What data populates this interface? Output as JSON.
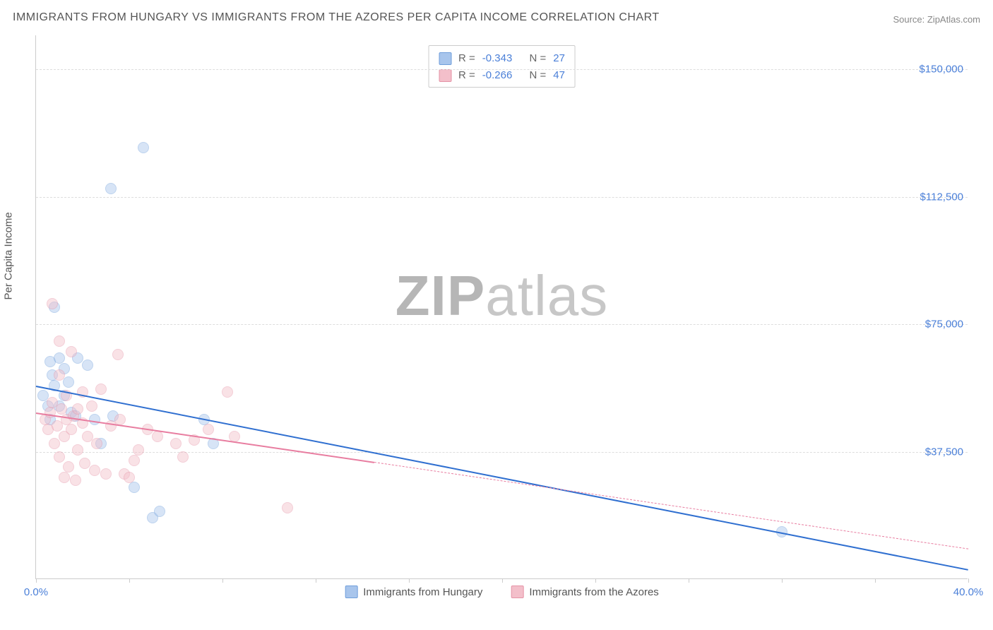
{
  "title": "IMMIGRANTS FROM HUNGARY VS IMMIGRANTS FROM THE AZORES PER CAPITA INCOME CORRELATION CHART",
  "source_label": "Source: ZipAtlas.com",
  "yaxis_title": "Per Capita Income",
  "watermark_bold": "ZIP",
  "watermark_light": "atlas",
  "chart": {
    "type": "scatter",
    "xlim": [
      0,
      40
    ],
    "ylim": [
      0,
      160000
    ],
    "background_color": "#ffffff",
    "grid_color": "#dddddd",
    "axis_color": "#cccccc",
    "gridlines_y": [
      37500,
      75000,
      112500,
      150000
    ],
    "ytick_labels": {
      "37500": "$37,500",
      "75000": "$75,000",
      "112500": "$112,500",
      "150000": "$150,000"
    },
    "xticks": [
      0,
      4,
      8,
      12,
      16,
      20,
      24,
      28,
      32,
      36,
      40
    ],
    "xtick_labels": {
      "0": "0.0%",
      "40": "40.0%"
    },
    "xtick_label_color": "#4a7fd8",
    "ytick_label_color": "#4a7fd8",
    "axis_title_color": "#555555",
    "marker_radius": 8,
    "marker_opacity": 0.45,
    "series": [
      {
        "name": "Immigrants from Hungary",
        "fill_color": "#a8c5ec",
        "stroke_color": "#6f9edb",
        "line_color": "#2f6fd0",
        "line_width": 2.5,
        "r_value": "-0.343",
        "n_value": "27",
        "trend": {
          "x1": 0,
          "y1": 57000,
          "x2": 40,
          "y2": 3000,
          "dash_from_x": null
        },
        "points": [
          [
            0.3,
            54000
          ],
          [
            0.5,
            51000
          ],
          [
            0.6,
            64000
          ],
          [
            0.6,
            47000
          ],
          [
            0.8,
            57000
          ],
          [
            0.8,
            80000
          ],
          [
            1.0,
            65000
          ],
          [
            1.2,
            54000
          ],
          [
            1.2,
            62000
          ],
          [
            1.4,
            58000
          ],
          [
            1.5,
            49000
          ],
          [
            1.7,
            48000
          ],
          [
            1.8,
            65000
          ],
          [
            2.2,
            63000
          ],
          [
            2.5,
            47000
          ],
          [
            2.8,
            40000
          ],
          [
            3.2,
            115000
          ],
          [
            3.3,
            48000
          ],
          [
            4.2,
            27000
          ],
          [
            4.6,
            127000
          ],
          [
            5.0,
            18000
          ],
          [
            5.3,
            20000
          ],
          [
            7.2,
            47000
          ],
          [
            7.6,
            40000
          ],
          [
            32.0,
            14000
          ],
          [
            1.0,
            51000
          ],
          [
            0.7,
            60000
          ]
        ]
      },
      {
        "name": "Immigrants from the Azores",
        "fill_color": "#f3bfca",
        "stroke_color": "#e593a6",
        "line_color": "#e87da0",
        "line_width": 2,
        "r_value": "-0.266",
        "n_value": "47",
        "trend": {
          "x1": 0,
          "y1": 49000,
          "x2": 40,
          "y2": 9000,
          "dash_from_x": 14.5
        },
        "points": [
          [
            0.4,
            47000
          ],
          [
            0.5,
            44000
          ],
          [
            0.6,
            49000
          ],
          [
            0.7,
            52000
          ],
          [
            0.7,
            81000
          ],
          [
            0.8,
            40000
          ],
          [
            0.9,
            45000
          ],
          [
            1.0,
            60000
          ],
          [
            1.0,
            36000
          ],
          [
            1.1,
            50000
          ],
          [
            1.2,
            30000
          ],
          [
            1.2,
            42000
          ],
          [
            1.3,
            47000
          ],
          [
            1.4,
            33000
          ],
          [
            1.5,
            44000
          ],
          [
            1.5,
            67000
          ],
          [
            1.6,
            48000
          ],
          [
            1.7,
            29000
          ],
          [
            1.8,
            50000
          ],
          [
            1.8,
            38000
          ],
          [
            2.0,
            46000
          ],
          [
            2.0,
            55000
          ],
          [
            2.1,
            34000
          ],
          [
            2.2,
            42000
          ],
          [
            2.4,
            51000
          ],
          [
            2.5,
            32000
          ],
          [
            2.6,
            40000
          ],
          [
            2.8,
            56000
          ],
          [
            3.0,
            31000
          ],
          [
            3.2,
            45000
          ],
          [
            3.5,
            66000
          ],
          [
            3.6,
            47000
          ],
          [
            3.8,
            31000
          ],
          [
            4.0,
            30000
          ],
          [
            4.2,
            35000
          ],
          [
            4.4,
            38000
          ],
          [
            4.8,
            44000
          ],
          [
            5.2,
            42000
          ],
          [
            6.0,
            40000
          ],
          [
            6.3,
            36000
          ],
          [
            6.8,
            41000
          ],
          [
            7.4,
            44000
          ],
          [
            8.2,
            55000
          ],
          [
            8.5,
            42000
          ],
          [
            10.8,
            21000
          ],
          [
            1.0,
            70000
          ],
          [
            1.3,
            54000
          ]
        ]
      }
    ]
  },
  "stat_legend": {
    "r_label": "R =",
    "n_label": "N ="
  },
  "bottom_legend": {
    "label_a": "Immigrants from Hungary",
    "label_b": "Immigrants from the Azores"
  }
}
